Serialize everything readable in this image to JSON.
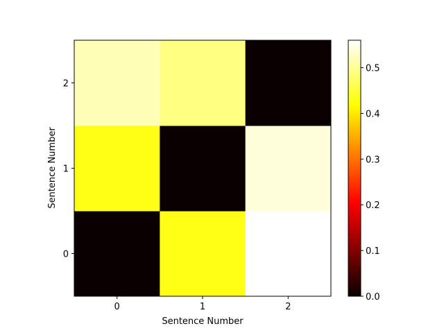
{
  "chart_data": {
    "type": "heatmap",
    "colormap": "hot",
    "xlabel": "Sentence Number",
    "ylabel": "Sentence Number",
    "x_categories": [
      "0",
      "1",
      "2"
    ],
    "y_categories": [
      "0",
      "1",
      "2"
    ],
    "origin": "lower",
    "values": [
      [
        0.0,
        0.43,
        0.56
      ],
      [
        0.43,
        0.0,
        0.54
      ],
      [
        0.52,
        0.49,
        0.0
      ]
    ],
    "colorbar": {
      "vmin": 0.0,
      "vmax": 0.56,
      "ticks": [
        0.0,
        0.1,
        0.2,
        0.3,
        0.4,
        0.5
      ],
      "tick_labels": [
        "0.0",
        "0.1",
        "0.2",
        "0.3",
        "0.4",
        "0.5"
      ]
    },
    "grid": false,
    "legend": "none"
  }
}
